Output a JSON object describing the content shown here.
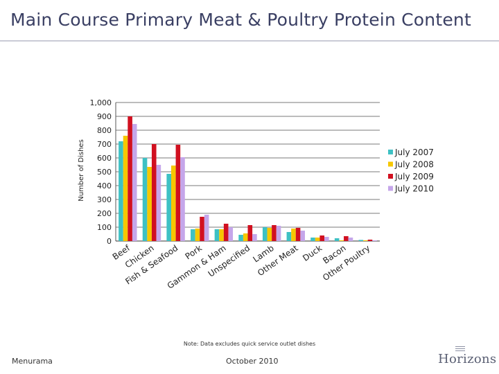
{
  "slide": {
    "title": "Main Course Primary Meat & Poultry Protein Content",
    "note": "Note: Data excludes quick service outlet dishes",
    "footer_left": "Menurama",
    "footer_center": "October 2010",
    "logo": "Horizons"
  },
  "chart_data": {
    "type": "bar",
    "title": "",
    "xlabel": "",
    "ylabel": "Number of Dishes",
    "ylim": [
      0,
      1000
    ],
    "yticks": [
      0,
      100,
      200,
      300,
      400,
      500,
      600,
      700,
      800,
      900,
      1000
    ],
    "ytick_labels": [
      "0",
      "100",
      "200",
      "300",
      "400",
      "500",
      "600",
      "700",
      "800",
      "900",
      "1,000"
    ],
    "grid": true,
    "legend": "right",
    "categories": [
      "Beef",
      "Chicken",
      "Fish & Seafood",
      "Pork",
      "Gammon & Ham",
      "Unspecified",
      "Lamb",
      "Other Meat",
      "Duck",
      "Bacon",
      "Other Poultry"
    ],
    "series": [
      {
        "name": "July 2007",
        "color": "#3ec1c4",
        "values": [
          720,
          600,
          485,
          85,
          85,
          45,
          100,
          65,
          25,
          20,
          8
        ]
      },
      {
        "name": "July 2008",
        "color": "#f6c700",
        "values": [
          760,
          535,
          545,
          90,
          85,
          55,
          95,
          90,
          25,
          5,
          5
        ]
      },
      {
        "name": "July 2009",
        "color": "#d11020",
        "values": [
          900,
          700,
          695,
          175,
          125,
          115,
          115,
          95,
          40,
          35,
          10
        ]
      },
      {
        "name": "July 2010",
        "color": "#c5a6ea",
        "values": [
          845,
          550,
          605,
          190,
          100,
          50,
          110,
          75,
          30,
          25,
          5
        ]
      }
    ]
  }
}
